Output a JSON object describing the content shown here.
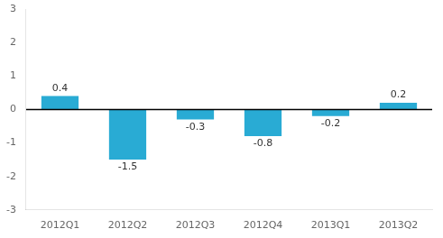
{
  "chart_data": {
    "type": "bar",
    "categories": [
      "2012Q1",
      "2012Q2",
      "2012Q3",
      "2012Q4",
      "2013Q1",
      "2013Q2"
    ],
    "values": [
      0.4,
      -1.5,
      -0.3,
      -0.8,
      -0.2,
      0.2
    ],
    "color": "#29ABD4",
    "ylim": [
      -3,
      3
    ],
    "yticks": [
      -3,
      -2,
      -1,
      0,
      1,
      2,
      3
    ],
    "grid": false,
    "data_labels": true
  }
}
